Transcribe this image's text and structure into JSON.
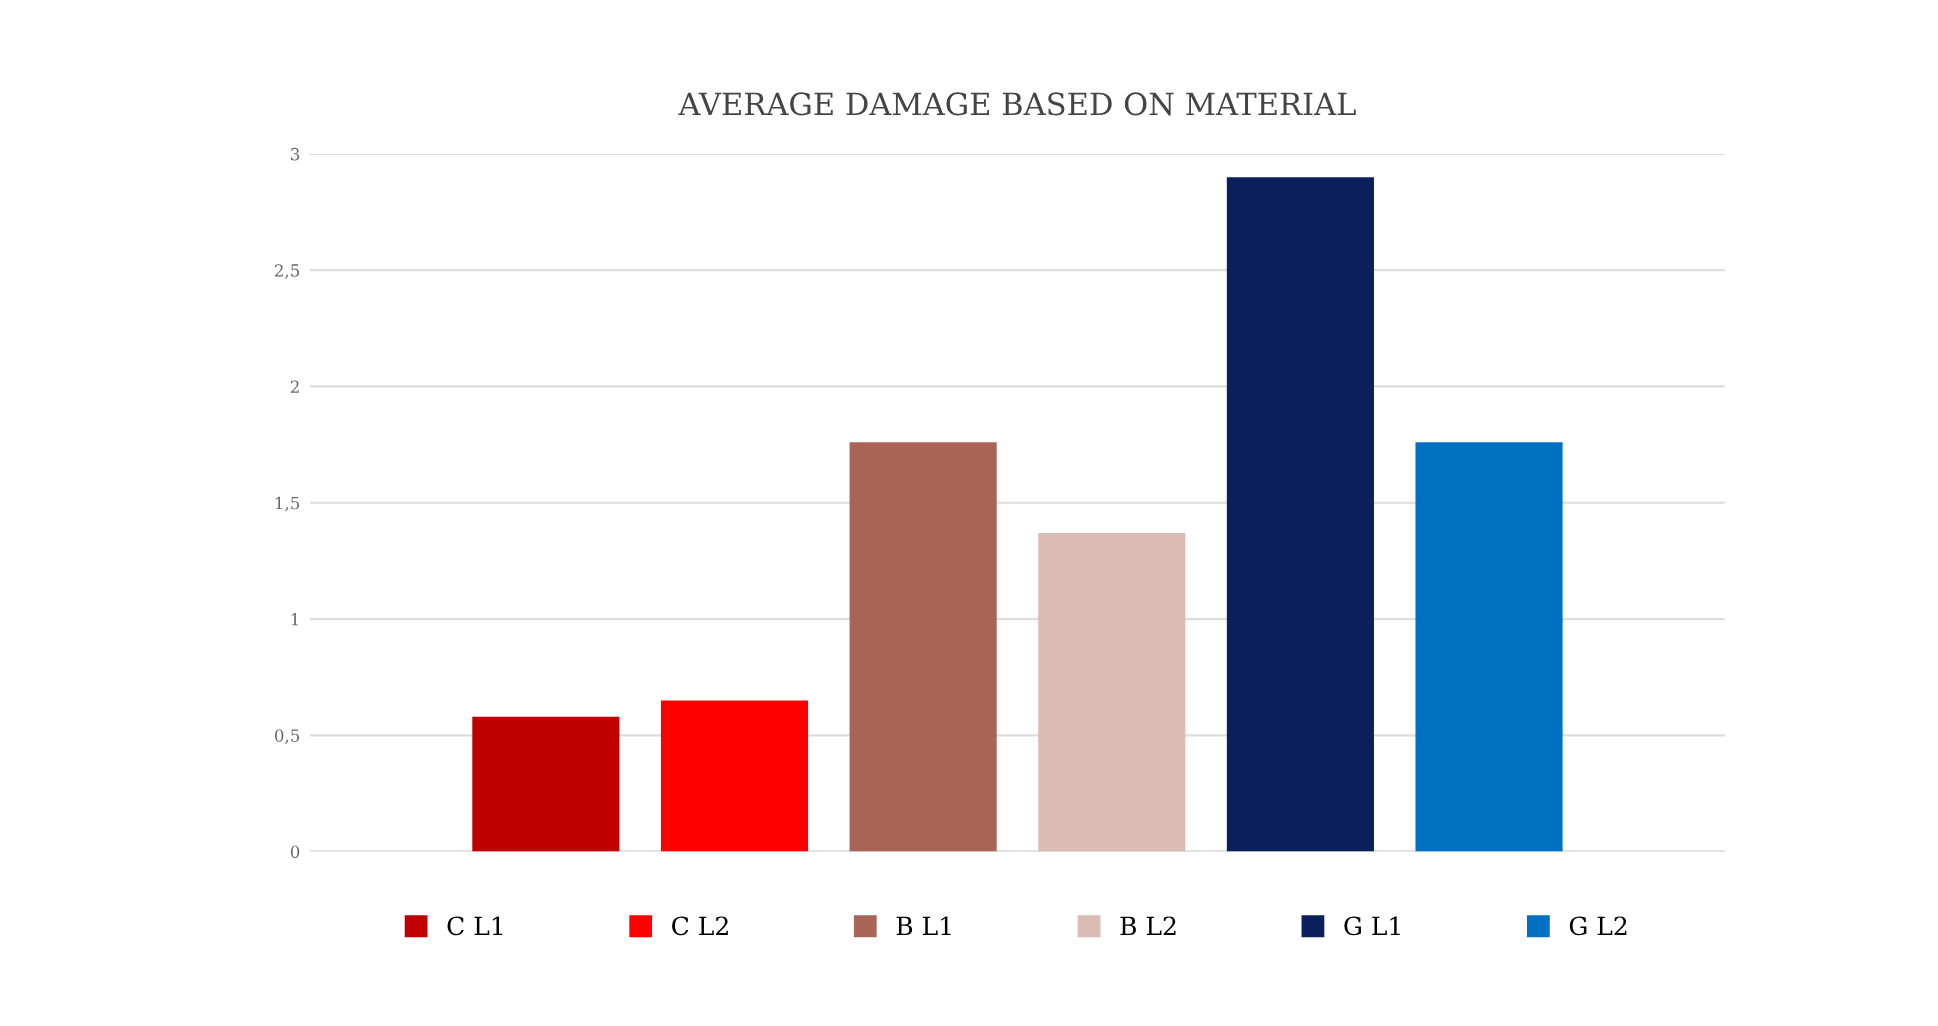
{
  "chart_data": {
    "type": "bar",
    "title": "AVERAGE DAMAGE BASED ON MATERIAL",
    "categories": [
      null
    ],
    "series": [
      {
        "name": "C L1",
        "color": "#c00000",
        "values": [
          0.58
        ]
      },
      {
        "name": "C L2",
        "color": "#ff0000",
        "values": [
          0.65
        ]
      },
      {
        "name": "B L1",
        "color": "#a86555",
        "values": [
          1.76
        ]
      },
      {
        "name": "B L2",
        "color": "#dcbcb2",
        "values": [
          1.37
        ]
      },
      {
        "name": "G L1",
        "color": "#0a1f5c",
        "values": [
          2.9
        ]
      },
      {
        "name": "G L2",
        "color": "#0070c0",
        "values": [
          1.76
        ]
      }
    ],
    "ylim": [
      0,
      3
    ],
    "yticks": [
      0,
      {
        "value": 0.5,
        "label": "0,5"
      },
      1,
      {
        "value": 1.5,
        "label": "1,5"
      },
      2,
      {
        "value": 2.5,
        "label": "2,5"
      },
      3
    ],
    "grid": "y",
    "legend": "bottom"
  }
}
